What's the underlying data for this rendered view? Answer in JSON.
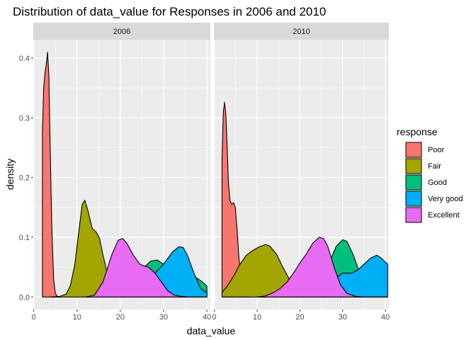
{
  "chart_data": {
    "type": "area",
    "title": "Distribution of data_value for Responses in 2006 and 2010",
    "xlabel": "data_value",
    "ylabel": "density",
    "xlim": [
      0,
      40
    ],
    "ylim": [
      0,
      0.42
    ],
    "xticks": [
      0,
      10,
      20,
      30,
      40
    ],
    "yticks": [
      0.0,
      0.1,
      0.2,
      0.3,
      0.4
    ],
    "ytick_labels": [
      "0.0",
      "0.1",
      "0.2",
      "0.3",
      "0.4"
    ],
    "legend": {
      "title": "response",
      "placement": "right",
      "entries": [
        "Poor",
        "Fair",
        "Good",
        "Very good",
        "Excellent"
      ]
    },
    "colors": {
      "Poor": "#F8766D",
      "Fair": "#A3A500",
      "Good": "#00BF7D",
      "Very good": "#00B0F6",
      "Excellent": "#E76BF3"
    },
    "facets": [
      {
        "label": "2006",
        "series": [
          {
            "name": "Poor",
            "x": [
              2.0,
              2.3,
              2.6,
              2.9,
              3.2,
              3.5,
              3.8,
              4.2,
              4.6,
              5.0,
              5.5,
              6.0
            ],
            "y": [
              0.275,
              0.35,
              0.375,
              0.39,
              0.41,
              0.37,
              0.25,
              0.11,
              0.03,
              0.006,
              0.001,
              0.0
            ]
          },
          {
            "name": "Fair",
            "x": [
              4.0,
              6.0,
              7.5,
              8.5,
              9.5,
              10.5,
              11.2,
              11.8,
              12.5,
              13.5,
              14.5,
              15.2,
              16.0,
              17.0,
              18.0,
              19.0,
              20.0,
              21.0,
              22.0,
              23.0,
              24.0,
              25.0
            ],
            "y": [
              0.0,
              0.001,
              0.005,
              0.02,
              0.055,
              0.115,
              0.155,
              0.162,
              0.145,
              0.115,
              0.108,
              0.098,
              0.07,
              0.04,
              0.02,
              0.008,
              0.003,
              0.001,
              0.0,
              0.0,
              0.0,
              0.0
            ]
          },
          {
            "name": "Good",
            "x": [
              16.0,
              18.0,
              20.0,
              22.0,
              24.0,
              25.5,
              27.0,
              28.5,
              30.0,
              32.0,
              34.0,
              36.0,
              38.0,
              39.0,
              40.0
            ],
            "y": [
              0.0,
              0.002,
              0.008,
              0.02,
              0.035,
              0.05,
              0.06,
              0.062,
              0.055,
              0.045,
              0.042,
              0.04,
              0.03,
              0.025,
              0.018
            ]
          },
          {
            "name": "Very good",
            "x": [
              18.0,
              20.0,
              22.0,
              24.0,
              26.0,
              28.0,
              30.0,
              32.0,
              33.5,
              34.5,
              35.5,
              37.0,
              38.5,
              39.5,
              40.0
            ],
            "y": [
              0.0,
              0.001,
              0.003,
              0.008,
              0.02,
              0.04,
              0.055,
              0.075,
              0.084,
              0.083,
              0.07,
              0.04,
              0.015,
              0.009,
              0.008
            ]
          },
          {
            "name": "Excellent",
            "x": [
              12.0,
              14.0,
              16.0,
              18.0,
              19.5,
              20.5,
              21.5,
              23.0,
              24.5,
              25.5,
              26.5,
              28.0,
              29.5,
              31.0,
              32.5,
              34.0,
              36.0,
              38.0,
              40.0
            ],
            "y": [
              0.0,
              0.003,
              0.025,
              0.07,
              0.095,
              0.098,
              0.09,
              0.07,
              0.055,
              0.052,
              0.05,
              0.04,
              0.025,
              0.01,
              0.003,
              0.001,
              0.0,
              0.0,
              0.0
            ]
          }
        ]
      },
      {
        "label": "2010",
        "series": [
          {
            "name": "Poor",
            "x": [
              1.8,
              2.1,
              2.4,
              2.7,
              3.0,
              3.3,
              3.7,
              4.1,
              4.5,
              4.9,
              5.3,
              5.7,
              6.2,
              6.8,
              7.5,
              8.5
            ],
            "y": [
              0.232,
              0.31,
              0.326,
              0.305,
              0.25,
              0.19,
              0.16,
              0.155,
              0.158,
              0.15,
              0.115,
              0.07,
              0.03,
              0.01,
              0.003,
              0.0
            ]
          },
          {
            "name": "Fair",
            "x": [
              1.8,
              3.0,
              4.5,
              6.0,
              7.5,
              9.0,
              10.5,
              12.0,
              13.0,
              14.5,
              16.0,
              17.5,
              19.0,
              20.5,
              22.0,
              24.0,
              26.0,
              28.0
            ],
            "y": [
              0.008,
              0.018,
              0.035,
              0.055,
              0.07,
              0.078,
              0.084,
              0.088,
              0.085,
              0.072,
              0.05,
              0.03,
              0.015,
              0.006,
              0.002,
              0.0,
              0.0,
              0.0
            ]
          },
          {
            "name": "Good",
            "x": [
              16.0,
              18.0,
              20.0,
              22.0,
              24.0,
              25.5,
              27.0,
              28.5,
              30.0,
              31.0,
              32.5,
              34.0,
              35.0,
              36.0,
              38.0,
              40.0
            ],
            "y": [
              0.0,
              0.003,
              0.01,
              0.025,
              0.04,
              0.045,
              0.06,
              0.085,
              0.096,
              0.093,
              0.07,
              0.04,
              0.025,
              0.015,
              0.006,
              0.003
            ]
          },
          {
            "name": "Very good",
            "x": [
              20.0,
              22.0,
              24.0,
              26.0,
              28.0,
              30.0,
              32.0,
              33.5,
              35.0,
              36.5,
              38.0,
              39.0,
              40.5
            ],
            "y": [
              0.0,
              0.002,
              0.006,
              0.015,
              0.03,
              0.04,
              0.04,
              0.045,
              0.055,
              0.065,
              0.07,
              0.065,
              0.055
            ]
          },
          {
            "name": "Excellent",
            "x": [
              10.0,
              12.0,
              14.0,
              15.5,
              17.0,
              18.5,
              20.0,
              21.5,
              23.0,
              24.5,
              25.5,
              26.5,
              28.0,
              29.5,
              31.0,
              33.0,
              35.0,
              38.0,
              40.5
            ],
            "y": [
              0.0,
              0.002,
              0.008,
              0.015,
              0.025,
              0.04,
              0.057,
              0.072,
              0.09,
              0.1,
              0.098,
              0.085,
              0.05,
              0.02,
              0.006,
              0.001,
              0.0,
              0.0,
              0.0
            ]
          }
        ]
      }
    ]
  }
}
